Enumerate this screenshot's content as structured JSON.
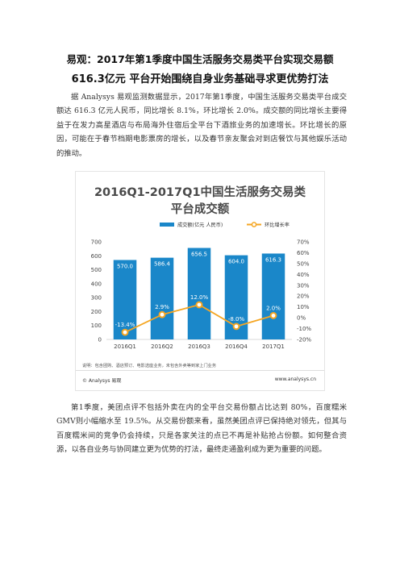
{
  "article": {
    "title_line1": "易观：2017年第1季度中国生活服务交易类平台实现交易额",
    "title_line2": "616.3亿元 平台开始围绕自身业务基础寻求更优势打法",
    "paragraph1": "据 Analysys 易观监测数据显示，2017年第1季度，中国生活服务交易类平台成交额达 616.3 亿元人民币，同比增长 8.1%，环比增长 2.0%。成交额的同比增长主要得益于在发力高星酒店与布局海外住宿后全平台下酒旅业务的加速增长。环比增长的原因，可能在于春节档期电影票房的增长，以及春节亲友聚会对到店餐饮与其他娱乐活动的推动。",
    "paragraph2": "第1季度，美团点评不包括外卖在内的全平台交易份额占比达到 80%，百度糯米GMV则小幅缩水至 19.5%。从交易份额来看，虽然美团点评已保持绝对领先，但其与百度糯米间的竞争仍会持续，只是各家关注的点已不再是补贴抢占份额。如何整合资源，以各自业务与协同建立更为优势的打法，最终走通盈利成为更为重要的问题。"
  },
  "figure": {
    "title_line1": "2016Q1-2017Q1中国生活服务交易类",
    "title_line2": "平台成交额",
    "note": "说明：包含团购、酒店预订、电影选座业务，未包含外卖等到家上门业务",
    "logo": "© Analysys 易观",
    "website": "www.analysys.cn"
  },
  "chart_data": {
    "type": "bar",
    "categories": [
      "2016Q1",
      "2016Q2",
      "2016Q3",
      "2016Q4",
      "2017Q1"
    ],
    "series": [
      {
        "name": "成交额(亿元 人民币)",
        "type": "bar",
        "values": [
          570.0,
          586.4,
          656.5,
          604.0,
          616.3
        ],
        "labels": [
          "570.0",
          "586.4",
          "656.5",
          "604.0",
          "616.3"
        ],
        "color": "#1a87c9"
      },
      {
        "name": "环比增长率",
        "type": "line",
        "values": [
          -13.4,
          2.9,
          12.0,
          -8.0,
          2.0
        ],
        "labels": [
          "-13.4%",
          "2.9%",
          "12.0%",
          "-8.0%",
          "2.0%"
        ],
        "color": "#f5a623"
      }
    ],
    "ylim_left": [
      0,
      700
    ],
    "yticks_left": [
      "0",
      "100",
      "200",
      "300",
      "400",
      "500",
      "600",
      "700"
    ],
    "ylim_right": [
      -20,
      70
    ],
    "yticks_right": [
      "-20%",
      "-10%",
      "0%",
      "10%",
      "20%",
      "30%",
      "40%",
      "50%",
      "60%",
      "70%"
    ],
    "legend_position": "top",
    "grid": false
  }
}
